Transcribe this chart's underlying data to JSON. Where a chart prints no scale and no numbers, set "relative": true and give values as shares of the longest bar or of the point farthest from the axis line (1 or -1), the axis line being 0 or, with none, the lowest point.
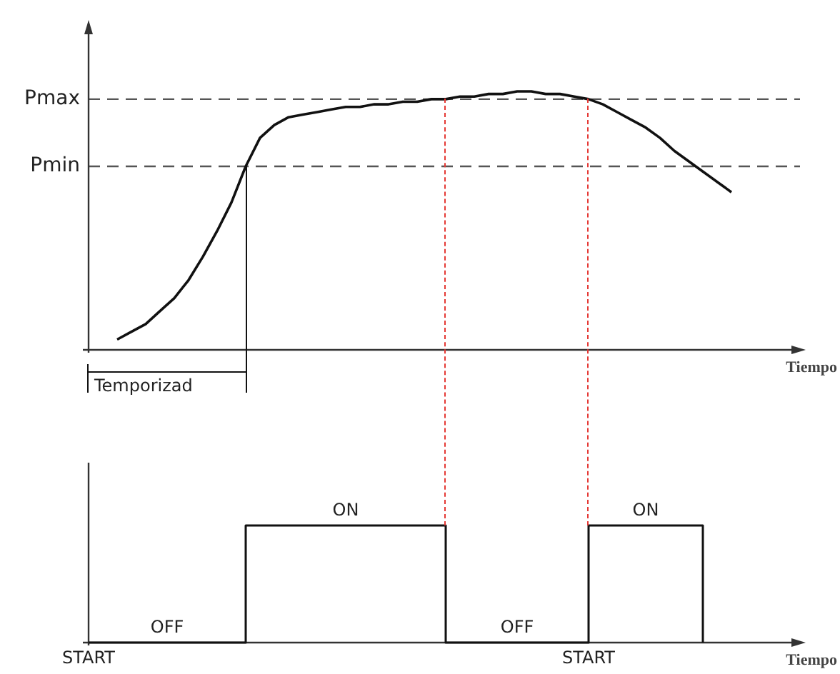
{
  "chart_data": [
    {
      "type": "line",
      "xlabel": "Tiempo",
      "relative": true,
      "tick_labels": false,
      "color": "#111111",
      "categories": [
        null,
        null,
        null,
        null,
        null,
        null,
        null,
        null,
        null,
        null,
        null,
        null,
        null,
        null,
        null,
        null,
        null,
        null,
        null,
        null,
        null,
        null,
        null,
        null,
        null,
        null,
        null,
        null,
        null,
        null,
        null,
        null,
        null,
        null,
        null,
        null,
        null,
        null,
        null,
        null,
        null,
        null,
        null,
        null,
        null,
        null,
        null,
        null,
        null,
        null,
        null
      ],
      "values": [
        null,
        null,
        0.04,
        0.07,
        0.1,
        0.15,
        0.2,
        0.27,
        0.36,
        0.46,
        0.57,
        0.71,
        0.82,
        0.87,
        0.9,
        0.91,
        0.92,
        0.93,
        0.94,
        0.94,
        0.95,
        0.95,
        0.96,
        0.96,
        0.97,
        0.97,
        0.98,
        0.98,
        0.99,
        0.99,
        1,
        1,
        0.99,
        0.99,
        0.98,
        0.97,
        0.95,
        0.92,
        0.89,
        0.86,
        0.82,
        0.77,
        0.73,
        0.69,
        0.65,
        0.61,
        null,
        null,
        null,
        null,
        null
      ],
      "ref_lines": [
        {
          "axis": "y",
          "value": 0.97,
          "label": "Pmax",
          "color": "#555555",
          "line_style": "dashed"
        },
        {
          "axis": "y",
          "value": 0.71,
          "label": "Pmin",
          "color": "#555555",
          "line_style": "dashed"
        }
      ],
      "annotations": [
        "Temporizad"
      ]
    },
    {
      "type": "step",
      "xlabel": "Tiempo",
      "relative": true,
      "tick_labels": "x",
      "color": "#111111",
      "categories": [
        "START",
        null,
        null,
        null,
        null,
        null,
        null,
        null,
        null,
        null,
        null,
        null,
        null,
        null,
        null,
        null,
        null,
        null,
        null,
        null,
        null,
        null,
        null,
        null,
        null,
        null,
        null,
        null,
        null,
        null,
        null,
        null,
        null,
        null,
        null,
        "START",
        null,
        null,
        null,
        null,
        null,
        null,
        null,
        null,
        null,
        null,
        null,
        null,
        null,
        null,
        null
      ],
      "values": [
        0,
        0,
        0,
        0,
        0,
        0,
        0,
        0,
        0,
        0,
        0,
        1,
        1,
        1,
        1,
        1,
        1,
        1,
        1,
        1,
        1,
        1,
        1,
        1,
        1,
        0,
        0,
        0,
        0,
        0,
        0,
        0,
        0,
        0,
        0,
        1,
        1,
        1,
        1,
        1,
        1,
        1,
        1,
        0,
        null,
        null,
        null,
        null,
        null,
        null,
        null
      ],
      "annotations": [
        "OFF",
        "ON",
        "OFF",
        "ON"
      ]
    }
  ]
}
